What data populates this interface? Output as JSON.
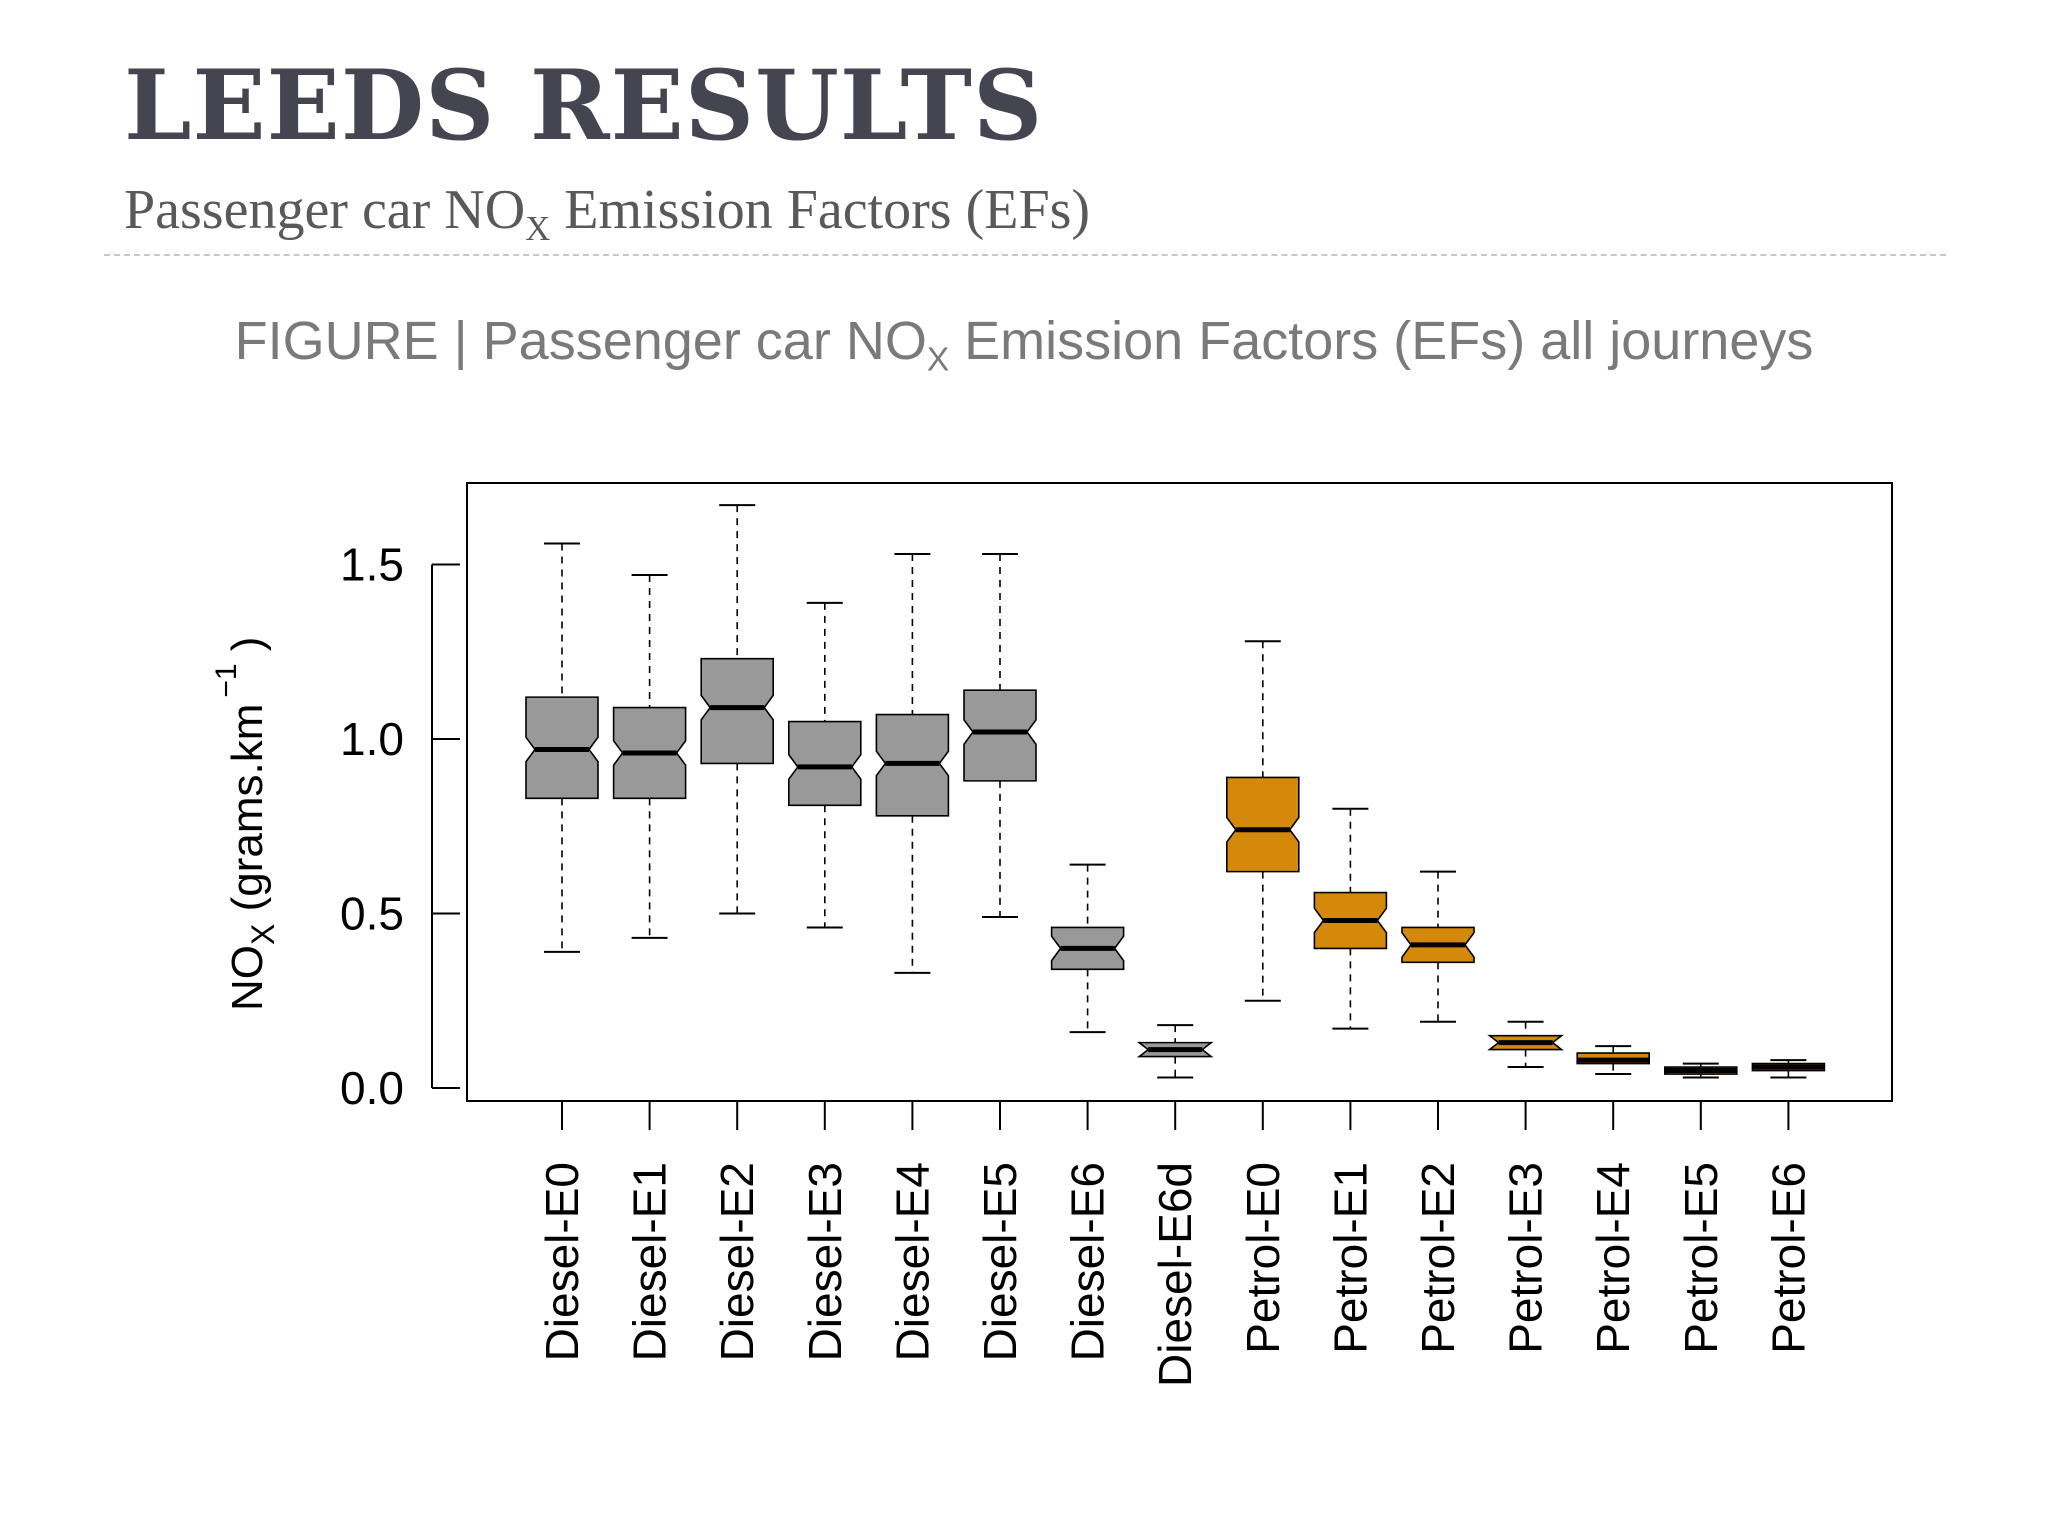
{
  "slide": {
    "title": "LEEDS RESULTS",
    "subtitle_main": "Passenger car NO",
    "subtitle_sub": "X",
    "subtitle_rest": " Emission Factors (EFs)",
    "caption_main": "FIGURE | Passenger car NO",
    "caption_sub": "X",
    "caption_rest": " Emission Factors (EFs) all journeys"
  },
  "colors": {
    "diesel": "#999999",
    "petrol": "#d4890a",
    "title": "#454552",
    "caption": "#7a7a7a"
  },
  "chart_data": {
    "type": "boxplot",
    "notched": true,
    "title": "",
    "xlabel": "",
    "ylabel": "NOX (grams.km −1 )",
    "ylabel_parts": {
      "main": "NO",
      "sub": "X",
      "rest": " (grams.km",
      "sup": "−1",
      "close": " )"
    },
    "ylim": [
      0.0,
      1.75
    ],
    "yticks": [
      0.0,
      0.5,
      1.0,
      1.5
    ],
    "ytick_labels": [
      "0.0",
      "0.5",
      "1.0",
      "1.5"
    ],
    "grid": false,
    "categories": [
      "Diesel-E0",
      "Diesel-E1",
      "Diesel-E2",
      "Diesel-E3",
      "Diesel-E4",
      "Diesel-E5",
      "Diesel-E6",
      "Diesel-E6d",
      "Petrol-E0",
      "Petrol-E1",
      "Petrol-E2",
      "Petrol-E3",
      "Petrol-E4",
      "Petrol-E5",
      "Petrol-E6"
    ],
    "fuel": [
      "diesel",
      "diesel",
      "diesel",
      "diesel",
      "diesel",
      "diesel",
      "diesel",
      "diesel",
      "petrol",
      "petrol",
      "petrol",
      "petrol",
      "petrol",
      "petrol",
      "petrol"
    ],
    "stats": [
      {
        "min": 0.39,
        "q1": 0.83,
        "median": 0.97,
        "q3": 1.12,
        "max": 1.56
      },
      {
        "min": 0.43,
        "q1": 0.83,
        "median": 0.96,
        "q3": 1.09,
        "max": 1.47
      },
      {
        "min": 0.5,
        "q1": 0.93,
        "median": 1.09,
        "q3": 1.23,
        "max": 1.67
      },
      {
        "min": 0.46,
        "q1": 0.81,
        "median": 0.92,
        "q3": 1.05,
        "max": 1.39
      },
      {
        "min": 0.33,
        "q1": 0.78,
        "median": 0.93,
        "q3": 1.07,
        "max": 1.53
      },
      {
        "min": 0.49,
        "q1": 0.88,
        "median": 1.02,
        "q3": 1.14,
        "max": 1.53
      },
      {
        "min": 0.16,
        "q1": 0.34,
        "median": 0.4,
        "q3": 0.46,
        "max": 0.64
      },
      {
        "min": 0.03,
        "q1": 0.09,
        "median": 0.11,
        "q3": 0.13,
        "max": 0.18
      },
      {
        "min": 0.25,
        "q1": 0.62,
        "median": 0.74,
        "q3": 0.89,
        "max": 1.28
      },
      {
        "min": 0.17,
        "q1": 0.4,
        "median": 0.48,
        "q3": 0.56,
        "max": 0.8
      },
      {
        "min": 0.19,
        "q1": 0.36,
        "median": 0.41,
        "q3": 0.46,
        "max": 0.62
      },
      {
        "min": 0.06,
        "q1": 0.11,
        "median": 0.13,
        "q3": 0.15,
        "max": 0.19
      },
      {
        "min": 0.04,
        "q1": 0.07,
        "median": 0.08,
        "q3": 0.1,
        "max": 0.12
      },
      {
        "min": 0.03,
        "q1": 0.04,
        "median": 0.05,
        "q3": 0.06,
        "max": 0.07
      },
      {
        "min": 0.03,
        "q1": 0.05,
        "median": 0.06,
        "q3": 0.07,
        "max": 0.08
      }
    ]
  }
}
